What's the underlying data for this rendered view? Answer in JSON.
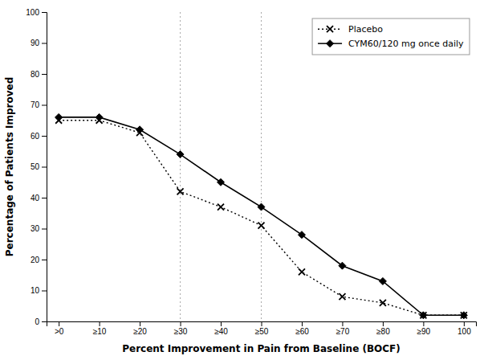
{
  "chart_data": {
    "type": "line",
    "xlabel": "Percent Improvement in Pain from Baseline (BOCF)",
    "ylabel": "Percentage of Patients Improved",
    "categories": [
      ">0",
      "≥10",
      "≥20",
      "≥30",
      "≥40",
      "≥50",
      "≥60",
      "≥70",
      "≥80",
      "≥90",
      "100"
    ],
    "series": [
      {
        "name": "Placebo",
        "color": "#000000",
        "marker": "x",
        "line_style": "dotted",
        "values": [
          65,
          65,
          61,
          42,
          37,
          31,
          16,
          8,
          6,
          2,
          2
        ]
      },
      {
        "name": "CYM60/120 mg once daily",
        "color": "#000000",
        "marker": "diamond",
        "line_style": "solid",
        "values": [
          66,
          66,
          62,
          54,
          45,
          37,
          28,
          18,
          13,
          2,
          2
        ]
      }
    ],
    "vlines": [
      3,
      5
    ],
    "ylim": [
      0,
      100
    ],
    "yticks": [
      0,
      10,
      20,
      30,
      40,
      50,
      60,
      70,
      80,
      90,
      100
    ],
    "grid": false,
    "legend": "upper right"
  }
}
